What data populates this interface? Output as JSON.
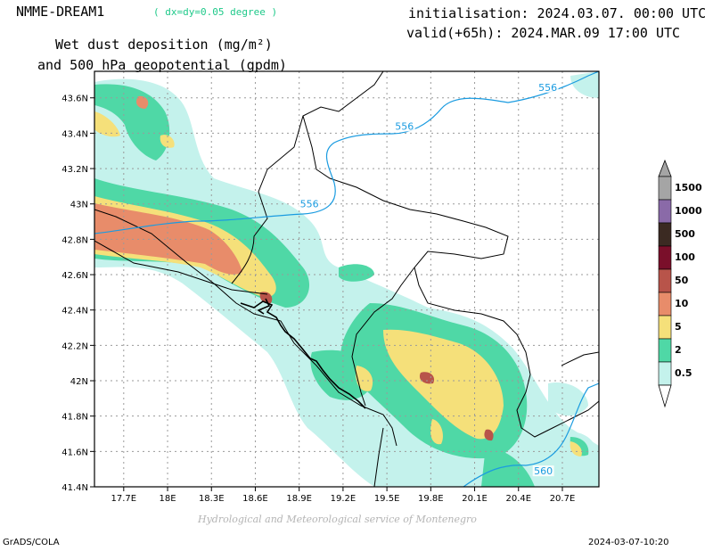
{
  "header": {
    "model": "NMME-DREAM1",
    "resolution": "( dx=dy=0.05 degree )",
    "title_line1": "Wet dust deposition (mg/m²)",
    "title_line2": "and 500 hPa geopotential (gpdm)",
    "initialisation": "initialisation: 2024.03.07. 00:00 UTC",
    "valid": "valid(+65h): 2024.MAR.09 17:00 UTC"
  },
  "map": {
    "lon_range": [
      17.5,
      20.95
    ],
    "lat_range": [
      41.4,
      43.75
    ],
    "x_ticks": [
      {
        "value": 17.7,
        "label": "17.7E"
      },
      {
        "value": 18.0,
        "label": "18E"
      },
      {
        "value": 18.3,
        "label": "18.3E"
      },
      {
        "value": 18.6,
        "label": "18.6E"
      },
      {
        "value": 18.9,
        "label": "18.9E"
      },
      {
        "value": 19.2,
        "label": "19.2E"
      },
      {
        "value": 19.5,
        "label": "19.5E"
      },
      {
        "value": 19.8,
        "label": "19.8E"
      },
      {
        "value": 20.1,
        "label": "20.1E"
      },
      {
        "value": 20.4,
        "label": "20.4E"
      },
      {
        "value": 20.7,
        "label": "20.7E"
      }
    ],
    "y_ticks": [
      {
        "value": 41.4,
        "label": "41.4N"
      },
      {
        "value": 41.6,
        "label": "41.6N"
      },
      {
        "value": 41.8,
        "label": "41.8N"
      },
      {
        "value": 42.0,
        "label": "42N"
      },
      {
        "value": 42.2,
        "label": "42.2N"
      },
      {
        "value": 42.4,
        "label": "42.4N"
      },
      {
        "value": 42.6,
        "label": "42.6N"
      },
      {
        "value": 42.8,
        "label": "42.8N"
      },
      {
        "value": 43.0,
        "label": "43N"
      },
      {
        "value": 43.2,
        "label": "43.2N"
      },
      {
        "value": 43.4,
        "label": "43.4N"
      },
      {
        "value": 43.6,
        "label": "43.6N"
      }
    ],
    "grid": true,
    "contour_color": "#1a9be0",
    "contour_labels": [
      {
        "text": "556",
        "lon": 20.6,
        "lat": 43.65
      },
      {
        "text": "556",
        "lon": 19.62,
        "lat": 43.43
      },
      {
        "text": "556",
        "lon": 18.97,
        "lat": 42.99
      },
      {
        "text": "560",
        "lon": 20.57,
        "lat": 41.48
      }
    ]
  },
  "legend": {
    "levels": [
      {
        "label": "1500",
        "color": "#a5a5a5"
      },
      {
        "label": "1000",
        "color": "#8a6aa8"
      },
      {
        "label": "500",
        "color": "#3b2a22"
      },
      {
        "label": "100",
        "color": "#7a0f2a"
      },
      {
        "label": "50",
        "color": "#b8544a"
      },
      {
        "label": "10",
        "color": "#e88c6a"
      },
      {
        "label": "5",
        "color": "#f5e07a"
      },
      {
        "label": "2",
        "color": "#4fd8a6"
      },
      {
        "label": "0.5",
        "color": "#c4f2ec"
      }
    ]
  },
  "footer": {
    "credit": "Hydrological and Meteorological service of Montenegro",
    "left": "GrADS/COLA",
    "right": "2024-03-07-10:20"
  }
}
